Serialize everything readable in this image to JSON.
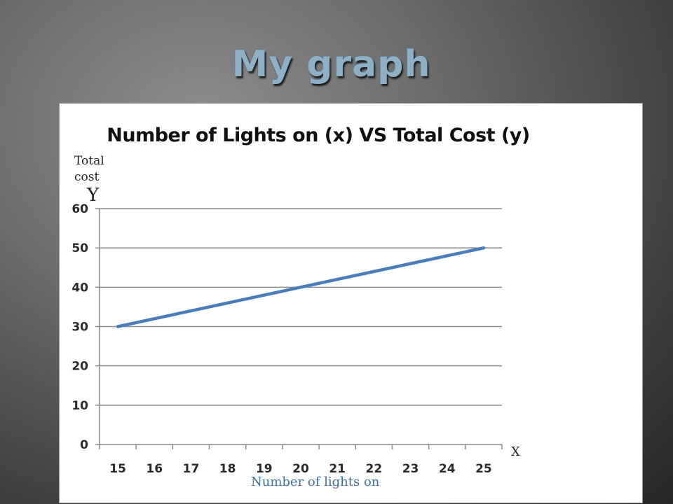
{
  "slide": {
    "title": "My graph"
  },
  "annotations": {
    "y_caption": "Total cost",
    "y_letter": "Y",
    "x_letter": "X",
    "x_caption": "Number of  lights on"
  },
  "chart_data": {
    "type": "line",
    "title": "Number of Lights on (x) VS Total Cost (y)",
    "categories": [
      "15",
      "16",
      "17",
      "18",
      "19",
      "20",
      "21",
      "22",
      "23",
      "24",
      "25"
    ],
    "series": [
      {
        "values": [
          30,
          32,
          34,
          36,
          38,
          40,
          42,
          44,
          46,
          48,
          50
        ],
        "color": "#4a7ebb"
      }
    ],
    "ylim": [
      0,
      60
    ],
    "yticks": [
      0,
      10,
      20,
      30,
      40,
      50,
      60
    ],
    "grid": true,
    "legend": "none"
  }
}
